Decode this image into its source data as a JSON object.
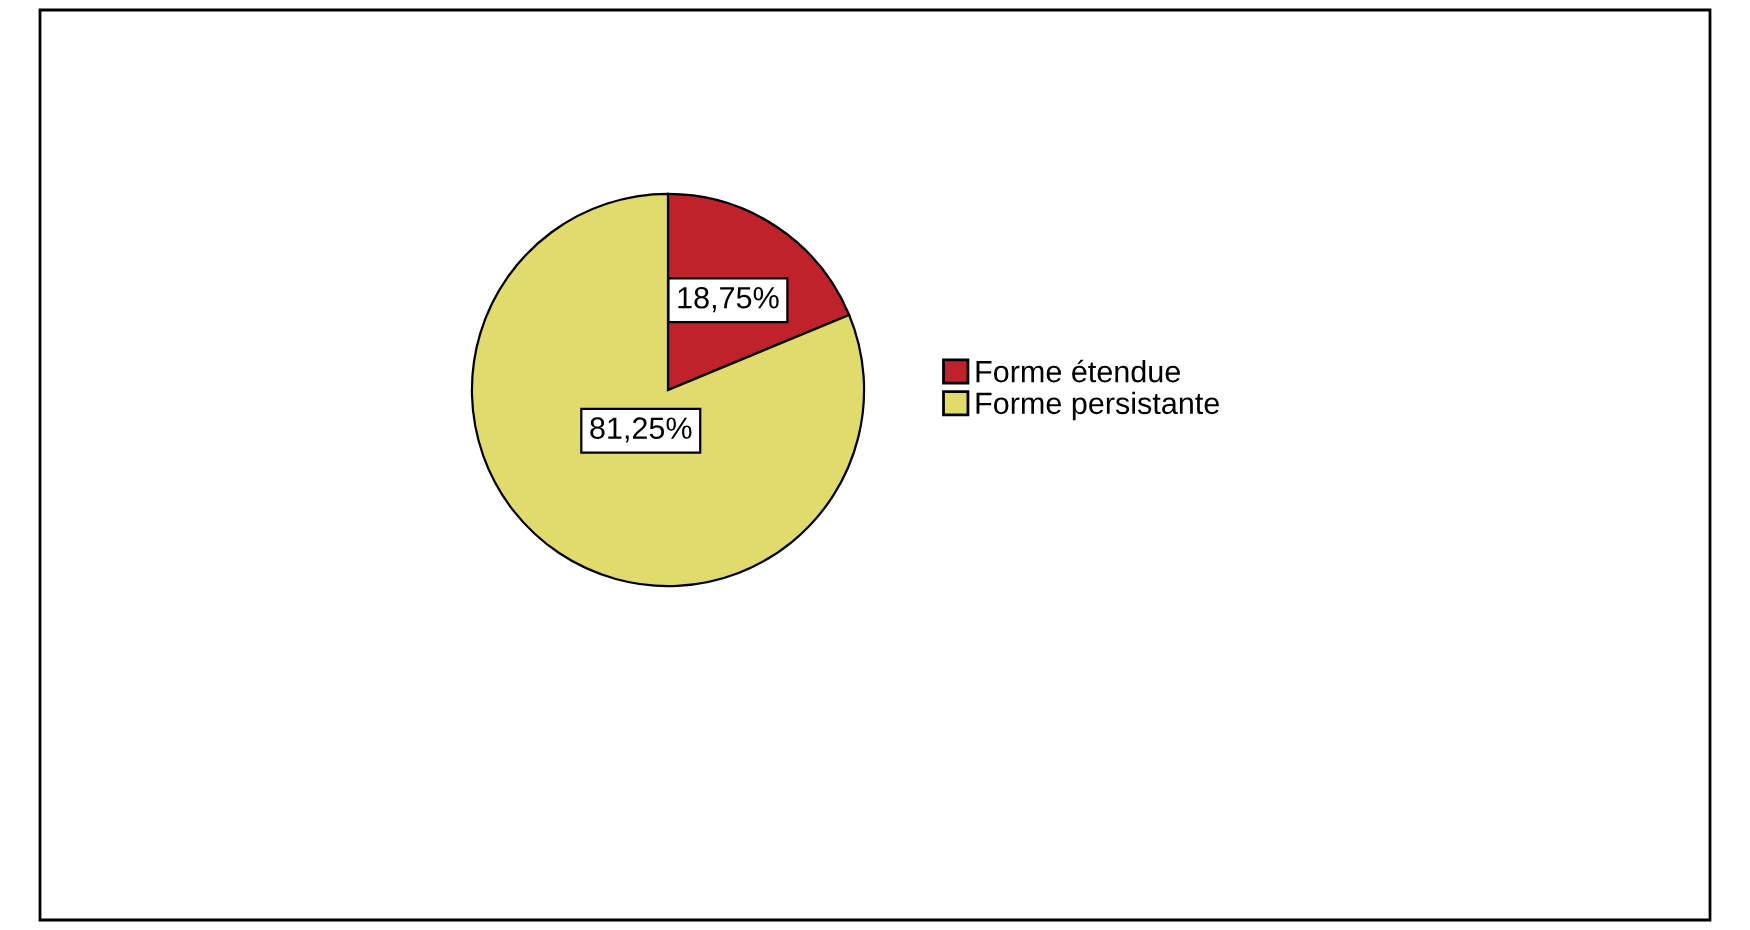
{
  "chart_data": {
    "type": "pie",
    "categories": [
      "Forme étendue",
      "Forme persistante"
    ],
    "values": [
      18.75,
      81.25
    ],
    "colors": [
      "#c0222b",
      "#e0db6c"
    ],
    "value_labels": [
      "18,75%",
      "81,25%"
    ],
    "legend": "right"
  }
}
